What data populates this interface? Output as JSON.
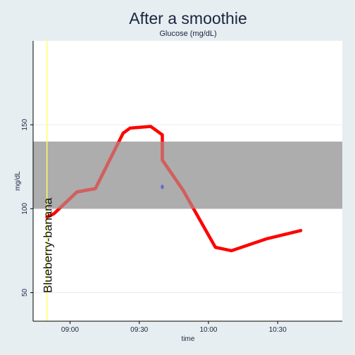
{
  "chart_data": {
    "type": "line",
    "title": "After a smoothie",
    "subtitle": "Glucose (mg/dL)",
    "xlabel": "time",
    "ylabel": "mg/dL",
    "x_ticks": [
      "09:00",
      "09:30",
      "10:00",
      "10:30"
    ],
    "y_ticks": [
      50,
      100,
      150
    ],
    "xlim": [
      "08:44",
      "10:58"
    ],
    "ylim": [
      33,
      200
    ],
    "grid": true,
    "target_range": {
      "low": 100,
      "high": 140,
      "color": "#adadad"
    },
    "event_marker": {
      "time": "08:50",
      "label": "Blueberry-banana",
      "color": "#ffff66"
    },
    "series": [
      {
        "color": "#ff0000",
        "points": [
          {
            "time": "08:50",
            "value": 95
          },
          {
            "time": "08:53",
            "value": 97
          },
          {
            "time": "09:03",
            "value": 110
          },
          {
            "time": "09:11",
            "value": 112
          },
          {
            "time": "09:19",
            "value": 134
          },
          {
            "time": "09:23",
            "value": 145
          },
          {
            "time": "09:26",
            "value": 148
          },
          {
            "time": "09:35",
            "value": 149
          },
          {
            "time": "09:40",
            "value": 144
          },
          {
            "time": "09:40",
            "value": 129
          },
          {
            "time": "09:49",
            "value": 111
          },
          {
            "time": "10:03",
            "value": 77
          },
          {
            "time": "10:10",
            "value": 75
          },
          {
            "time": "10:25",
            "value": 82
          },
          {
            "time": "10:40",
            "value": 87
          }
        ]
      }
    ],
    "extra_points": [
      {
        "time": "09:40",
        "value": 113,
        "color": "#6a6ad0"
      }
    ]
  }
}
